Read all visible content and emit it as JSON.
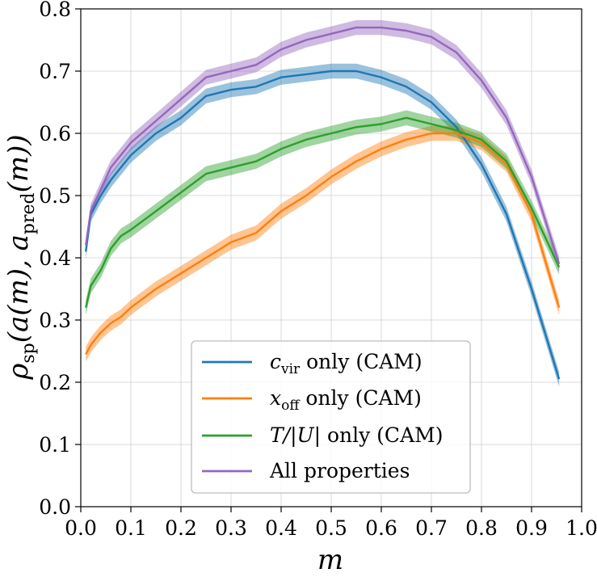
{
  "chart_data": {
    "type": "line",
    "title": "",
    "xlabel": "m",
    "ylabel": {
      "rho": "ρ",
      "rho_sub": "sp",
      "open": "(a(m), a",
      "pred_sub": "pred",
      "close": "(m))"
    },
    "xlim": [
      0.0,
      1.0
    ],
    "ylim": [
      0.0,
      0.8
    ],
    "xticks": [
      "0.0",
      "0.1",
      "0.2",
      "0.3",
      "0.4",
      "0.5",
      "0.6",
      "0.7",
      "0.8",
      "0.9",
      "1.0"
    ],
    "yticks": [
      "0.0",
      "0.1",
      "0.2",
      "0.3",
      "0.4",
      "0.5",
      "0.6",
      "0.7",
      "0.8"
    ],
    "grid": true,
    "legend_position": "lower-center",
    "x": [
      0.01,
      0.02,
      0.04,
      0.06,
      0.08,
      0.1,
      0.15,
      0.2,
      0.25,
      0.3,
      0.35,
      0.4,
      0.45,
      0.5,
      0.55,
      0.6,
      0.65,
      0.7,
      0.75,
      0.8,
      0.85,
      0.9,
      0.955
    ],
    "series": [
      {
        "name": "c_vir only (CAM)",
        "legend": {
          "main": "c",
          "sub": "vir",
          "rest": " only (CAM)"
        },
        "color": "#1f77b4",
        "band": 0.012,
        "values": [
          0.41,
          0.47,
          0.5,
          0.525,
          0.545,
          0.565,
          0.6,
          0.625,
          0.66,
          0.67,
          0.675,
          0.69,
          0.695,
          0.7,
          0.7,
          0.69,
          0.675,
          0.65,
          0.61,
          0.55,
          0.47,
          0.35,
          0.205
        ]
      },
      {
        "name": "x_off only (CAM)",
        "legend": {
          "main": "x",
          "sub": "off",
          "rest": " only (CAM)"
        },
        "color": "#ff7f0e",
        "band": 0.012,
        "values": [
          0.245,
          0.26,
          0.28,
          0.295,
          0.305,
          0.32,
          0.35,
          0.375,
          0.4,
          0.425,
          0.44,
          0.475,
          0.5,
          0.53,
          0.555,
          0.575,
          0.59,
          0.6,
          0.6,
          0.585,
          0.55,
          0.47,
          0.32
        ]
      },
      {
        "name": "T/|U| only (CAM)",
        "legend": {
          "main": "T/|U|",
          "sub": "",
          "rest": " only (CAM)"
        },
        "color": "#2ca02c",
        "band": 0.012,
        "values": [
          0.32,
          0.355,
          0.38,
          0.415,
          0.435,
          0.445,
          0.475,
          0.505,
          0.535,
          0.545,
          0.555,
          0.575,
          0.59,
          0.6,
          0.61,
          0.615,
          0.625,
          0.615,
          0.605,
          0.59,
          0.555,
          0.48,
          0.385
        ]
      },
      {
        "name": "All properties",
        "legend": {
          "main": "",
          "sub": "",
          "rest": "All properties"
        },
        "color": "#9467bd",
        "band": 0.012,
        "values": [
          0.42,
          0.475,
          0.51,
          0.545,
          0.565,
          0.585,
          0.62,
          0.655,
          0.69,
          0.7,
          0.71,
          0.735,
          0.75,
          0.76,
          0.77,
          0.77,
          0.765,
          0.755,
          0.73,
          0.685,
          0.625,
          0.53,
          0.39
        ]
      }
    ]
  }
}
